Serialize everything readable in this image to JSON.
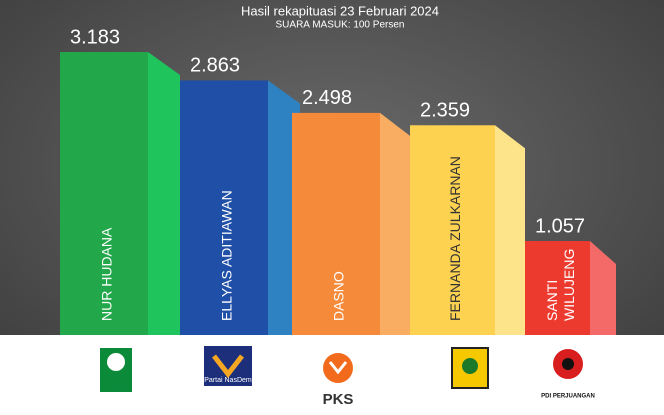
{
  "chart_data": {
    "type": "bar",
    "title": "Hasil rekapituasi 23 Februari 2024",
    "subtitle": "SUARA MASUK: 100 Persen",
    "categories": [
      "NUR HUDANA",
      "ELLYAS ADITIAWAN",
      "DASNO",
      "FERNANDA ZULKARNAN",
      [
        "SANTI",
        "WILUJENG"
      ]
    ],
    "values": [
      3.183,
      2.863,
      2.498,
      2.359,
      1.057
    ],
    "colors": [
      "#22a84a",
      "#1f4fa6",
      "#f58a3a",
      "#fcd250",
      "#ec3a2f"
    ],
    "side_colors": [
      "#1fc45c",
      "#2f82c2",
      "#f9ad62",
      "#fde48a",
      "#f46a68"
    ],
    "parties": [
      "PKB",
      "Partai NasDem",
      "PKS",
      null,
      "PDI PERJUANGAN"
    ]
  }
}
